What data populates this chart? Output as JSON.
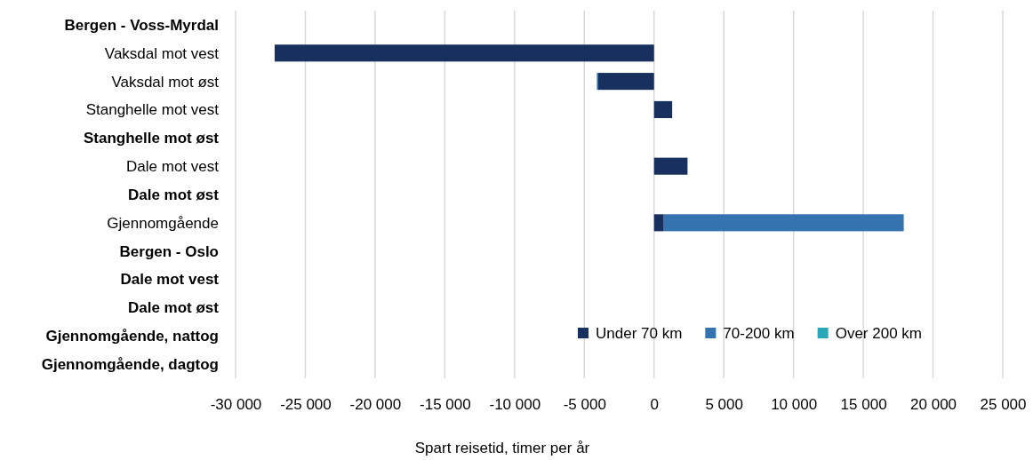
{
  "chart_data": {
    "type": "bar",
    "orientation": "horizontal",
    "stacked": true,
    "categories": [
      "Bergen - Voss-Myrdal",
      "Vaksdal mot vest",
      "Vaksdal mot øst",
      "Stanghelle mot vest",
      "Stanghelle mot øst",
      "Dale mot vest",
      "Dale mot øst",
      "Gjennomgående",
      "Bergen - Oslo",
      "Dale mot vest",
      "Dale mot øst",
      "Gjennomgående, nattog",
      "Gjennomgående, dagtog"
    ],
    "series": [
      {
        "name": "Under 70 km",
        "color": "#18305e",
        "values": [
          null,
          -27200,
          -4000,
          1300,
          null,
          2400,
          null,
          700,
          null,
          null,
          null,
          null,
          null
        ]
      },
      {
        "name": "70-200 km",
        "color": "#3572b0",
        "values": [
          null,
          null,
          -100,
          null,
          null,
          null,
          null,
          17200,
          null,
          null,
          null,
          null,
          null
        ]
      },
      {
        "name": "Over 200 km",
        "color": "#2aa8b8",
        "values": [
          null,
          null,
          null,
          null,
          null,
          null,
          null,
          null,
          null,
          null,
          null,
          null,
          null
        ]
      }
    ],
    "xlim": [
      -30000,
      25000
    ],
    "xticks": [
      {
        "value": -30000,
        "label": "-30 000"
      },
      {
        "value": -25000,
        "label": "-25 000"
      },
      {
        "value": -20000,
        "label": "-20 000"
      },
      {
        "value": -15000,
        "label": "-15 000"
      },
      {
        "value": -10000,
        "label": "-10 000"
      },
      {
        "value": -5000,
        "label": "-5 000"
      },
      0,
      {
        "value": 5000,
        "label": "5 000"
      },
      {
        "value": 10000,
        "label": "10 000"
      },
      {
        "value": 15000,
        "label": "15 000"
      },
      {
        "value": 20000,
        "label": "20 000"
      },
      {
        "value": 25000,
        "label": "25 000"
      }
    ],
    "xlabel": "Spart reisetid, timer per år",
    "grid": "x",
    "legend": "bottom right"
  }
}
